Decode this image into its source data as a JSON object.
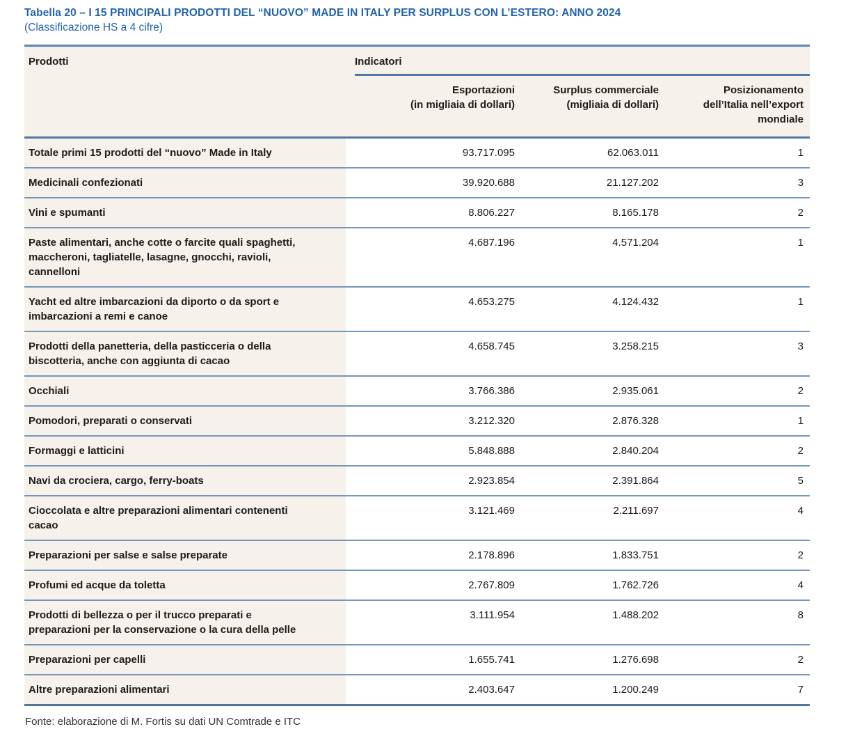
{
  "title": "Tabella 20 – I 15 PRINCIPALI PRODOTTI DEL “NUOVO” MADE IN ITALY PER SURPLUS CON L’ESTERO: ANNO 2024",
  "subtitle": "(Classificazione HS a 4 cifre)",
  "table": {
    "group_headers": {
      "products": "Prodotti",
      "indicators": "Indicatori"
    },
    "columns": [
      {
        "label": "Esportazioni\n(in migliaia di dollari)"
      },
      {
        "label": "Surplus commerciale\n(migliaia di dollari)"
      },
      {
        "label": "Posizionamento\ndell’Italia nell’export\nmondiale"
      }
    ],
    "rows": [
      {
        "product": "Totale primi 15 prodotti del “nuovo” Made in Italy",
        "export": "93.717.095",
        "surplus": "62.063.011",
        "rank": "1"
      },
      {
        "product": "Medicinali confezionati",
        "export": "39.920.688",
        "surplus": "21.127.202",
        "rank": "3"
      },
      {
        "product": "Vini e spumanti",
        "export": "8.806.227",
        "surplus": "8.165.178",
        "rank": "2"
      },
      {
        "product": "Paste alimentari, anche cotte o farcite quali spaghetti, maccheroni, tagliatelle, lasagne, gnocchi, ravioli, cannelloni",
        "export": "4.687.196",
        "surplus": "4.571.204",
        "rank": "1"
      },
      {
        "product": "Yacht ed altre imbarcazioni da diporto o da sport e imbarcazioni a remi e canoe",
        "export": "4.653.275",
        "surplus": "4.124.432",
        "rank": "1"
      },
      {
        "product": "Prodotti della panetteria, della pasticceria o della biscotteria, anche con aggiunta di cacao",
        "export": "4.658.745",
        "surplus": "3.258.215",
        "rank": "3"
      },
      {
        "product": "Occhiali",
        "export": "3.766.386",
        "surplus": "2.935.061",
        "rank": "2"
      },
      {
        "product": "Pomodori, preparati o conservati",
        "export": "3.212.320",
        "surplus": "2.876.328",
        "rank": "1"
      },
      {
        "product": "Formaggi e latticini",
        "export": "5.848.888",
        "surplus": "2.840.204",
        "rank": "2"
      },
      {
        "product": "Navi da crociera, cargo, ferry-boats",
        "export": "2.923.854",
        "surplus": "2.391.864",
        "rank": "5"
      },
      {
        "product": "Cioccolata e altre preparazioni alimentari contenenti cacao",
        "export": "3.121.469",
        "surplus": "2.211.697",
        "rank": "4"
      },
      {
        "product": "Preparazioni per salse e salse preparate",
        "export": "2.178.896",
        "surplus": "1.833.751",
        "rank": "2"
      },
      {
        "product": "Profumi ed acque da toletta",
        "export": "2.767.809",
        "surplus": "1.762.726",
        "rank": "4"
      },
      {
        "product": "Prodotti di bellezza o per il trucco preparati e preparazioni per la conservazione o la cura della pelle",
        "export": "3.111.954",
        "surplus": "1.488.202",
        "rank": "8"
      },
      {
        "product": "Preparazioni per capelli",
        "export": "1.655.741",
        "surplus": "1.276.698",
        "rank": "2"
      },
      {
        "product": "Altre preparazioni alimentari",
        "export": "2.403.647",
        "surplus": "1.200.249",
        "rank": "7"
      }
    ]
  },
  "source": "Fonte: elaborazione di M. Fortis su dati UN Comtrade e ITC",
  "colors": {
    "accent": "#2363ac",
    "line": "#4a7bae",
    "rowline": "#7796ba",
    "band": "#f6f1ea",
    "ink": "#1c1c1c"
  }
}
